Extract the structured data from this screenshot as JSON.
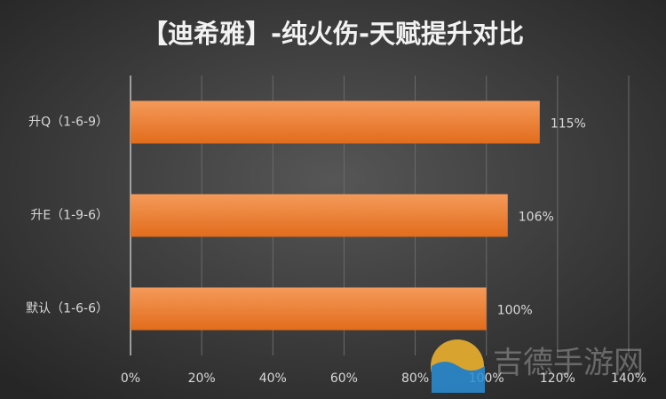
{
  "chart_data": {
    "type": "bar",
    "orientation": "horizontal",
    "title": "【迪希雅】-纯火伤-天赋提升对比",
    "categories": [
      "升Q（1-6-9）",
      "升E（1-9-6）",
      "默认（1-6-6）"
    ],
    "values": [
      115,
      106,
      100
    ],
    "value_labels": [
      "115%",
      "106%",
      "100%"
    ],
    "color": "#ed7d31",
    "xlim": [
      0,
      140
    ],
    "xticks": [
      {
        "value": 0,
        "label": "0%"
      },
      {
        "value": 20,
        "label": "20%"
      },
      {
        "value": 40,
        "label": "40%"
      },
      {
        "value": 60,
        "label": "60%"
      },
      {
        "value": 80,
        "label": "80%"
      },
      {
        "value": 100,
        "label": "100%"
      },
      {
        "value": 120,
        "label": "120%"
      },
      {
        "value": 140,
        "label": "140%"
      }
    ],
    "grid": true,
    "watermark": "吉德手游网"
  }
}
